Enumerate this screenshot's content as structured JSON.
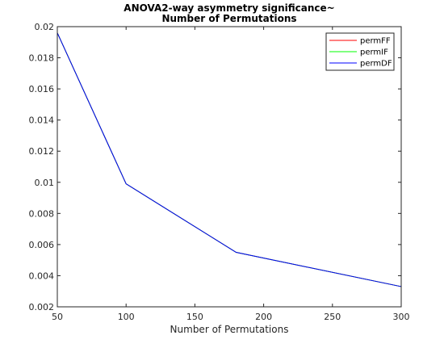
{
  "chart_data": {
    "type": "line",
    "title_lines": [
      "ANOVA2-way asymmetry significance~",
      "Number of Permutations"
    ],
    "xlabel": "Number of Permutations",
    "ylabel": "",
    "xlim": [
      50,
      300
    ],
    "ylim": [
      0.002,
      0.02
    ],
    "x_ticks": [
      50,
      100,
      150,
      200,
      250,
      300
    ],
    "y_ticks": [
      0.002,
      0.004,
      0.006,
      0.008,
      0.01,
      0.012,
      0.014,
      0.016,
      0.018,
      0.02
    ],
    "y_tick_labels": [
      "0.002",
      "0.004",
      "0.006",
      "0.008",
      "0.01",
      "0.012",
      "0.014",
      "0.016",
      "0.018",
      "0.02"
    ],
    "x": [
      50,
      100,
      180,
      300
    ],
    "series": [
      {
        "name": "permFF",
        "color": "#ff0000",
        "values": [
          0.0196,
          0.0099,
          0.0055,
          0.0033
        ]
      },
      {
        "name": "permIF",
        "color": "#00ff00",
        "values": [
          0.0196,
          0.0099,
          0.0055,
          0.0033
        ]
      },
      {
        "name": "permDF",
        "color": "#0000ff",
        "values": [
          0.0196,
          0.0099,
          0.0055,
          0.0033
        ]
      }
    ],
    "legend_position": "top-right",
    "grid": false
  }
}
